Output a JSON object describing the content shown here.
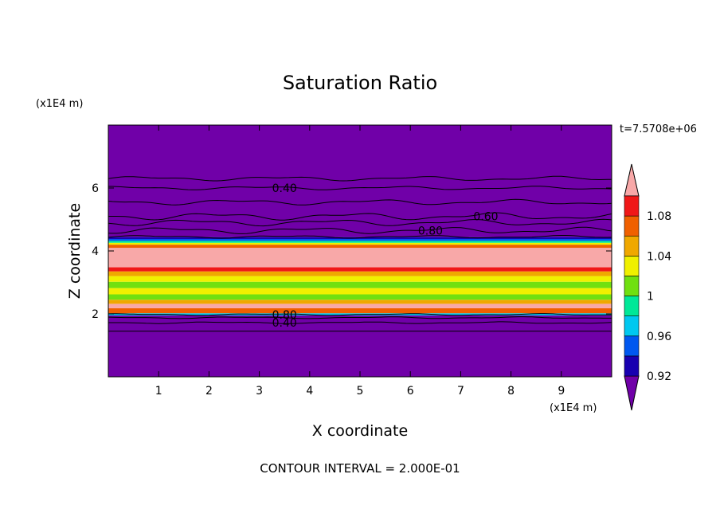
{
  "chart_data": {
    "type": "heatmap",
    "title": "Saturation Ratio",
    "xlabel": "X coordinate",
    "ylabel": "Z coordinate",
    "x_unit": "(x1E4 m)",
    "y_unit": "(x1E4 m)",
    "time_label": "t=7.5708e+06",
    "footer": "CONTOUR INTERVAL = 2.000E-01",
    "xlim": [
      0,
      10
    ],
    "ylim": [
      0,
      8
    ],
    "x_ticks": [
      1,
      2,
      3,
      4,
      5,
      6,
      7,
      8,
      9
    ],
    "y_ticks": [
      2,
      4,
      6
    ],
    "colorbar": {
      "levels": [
        0.92,
        0.94,
        0.96,
        0.98,
        1.0,
        1.02,
        1.04,
        1.06,
        1.08
      ],
      "tick_labels": [
        "0.92",
        "0.96",
        "1",
        "1.04",
        "1.08"
      ],
      "colors": [
        "#7000a8",
        "#1800b0",
        "#0058f0",
        "#00c8f0",
        "#00e898",
        "#70e010",
        "#f0f000",
        "#f0a800",
        "#f06000",
        "#f01818",
        "#f8a8a8"
      ]
    },
    "bands": [
      {
        "z0": 0.0,
        "z1": 1.95,
        "color": "#7000a8"
      },
      {
        "z0": 1.95,
        "z1": 2.02,
        "color": "#00c8f0"
      },
      {
        "z0": 2.02,
        "z1": 2.18,
        "color": "#f06000"
      },
      {
        "z0": 2.18,
        "z1": 2.32,
        "color": "#f8a8a8"
      },
      {
        "z0": 2.32,
        "z1": 2.45,
        "color": "#f0a800"
      },
      {
        "z0": 2.45,
        "z1": 2.62,
        "color": "#70e010"
      },
      {
        "z0": 2.62,
        "z1": 2.82,
        "color": "#f0f000"
      },
      {
        "z0": 2.82,
        "z1": 3.02,
        "color": "#70e010"
      },
      {
        "z0": 3.02,
        "z1": 3.2,
        "color": "#f0f000"
      },
      {
        "z0": 3.2,
        "z1": 3.35,
        "color": "#f0a800"
      },
      {
        "z0": 3.35,
        "z1": 3.48,
        "color": "#f01818"
      },
      {
        "z0": 3.48,
        "z1": 4.1,
        "color": "#f8a8a8"
      },
      {
        "z0": 4.1,
        "z1": 4.2,
        "color": "#f06000"
      },
      {
        "z0": 4.2,
        "z1": 4.26,
        "color": "#f0f000"
      },
      {
        "z0": 4.26,
        "z1": 4.32,
        "color": "#00e898"
      },
      {
        "z0": 4.32,
        "z1": 4.38,
        "color": "#0058f0"
      },
      {
        "z0": 4.38,
        "z1": 4.44,
        "color": "#1800b0"
      },
      {
        "z0": 4.44,
        "z1": 8.0,
        "color": "#7000a8"
      }
    ],
    "contours": [
      {
        "z": 6.3,
        "amp": 0.05
      },
      {
        "z": 6.0,
        "amp": 0.04,
        "label": "0.40",
        "label_x": 3.5
      },
      {
        "z": 5.55,
        "amp": 0.06
      },
      {
        "z": 5.1,
        "amp": 0.08,
        "label": "0.60",
        "label_x": 7.5
      },
      {
        "z": 4.9,
        "amp": 0.07
      },
      {
        "z": 4.65,
        "amp": 0.07,
        "label": "0.80",
        "label_x": 6.4
      },
      {
        "z": 4.45,
        "amp": 0.03
      },
      {
        "z": 1.98,
        "amp": 0.02,
        "label": "0.80",
        "label_x": 3.5
      },
      {
        "z": 1.88,
        "amp": 0.02
      },
      {
        "z": 1.72,
        "amp": 0.02,
        "label": "0.40",
        "label_x": 3.5
      },
      {
        "z": 1.45,
        "amp": 0.0
      }
    ]
  }
}
